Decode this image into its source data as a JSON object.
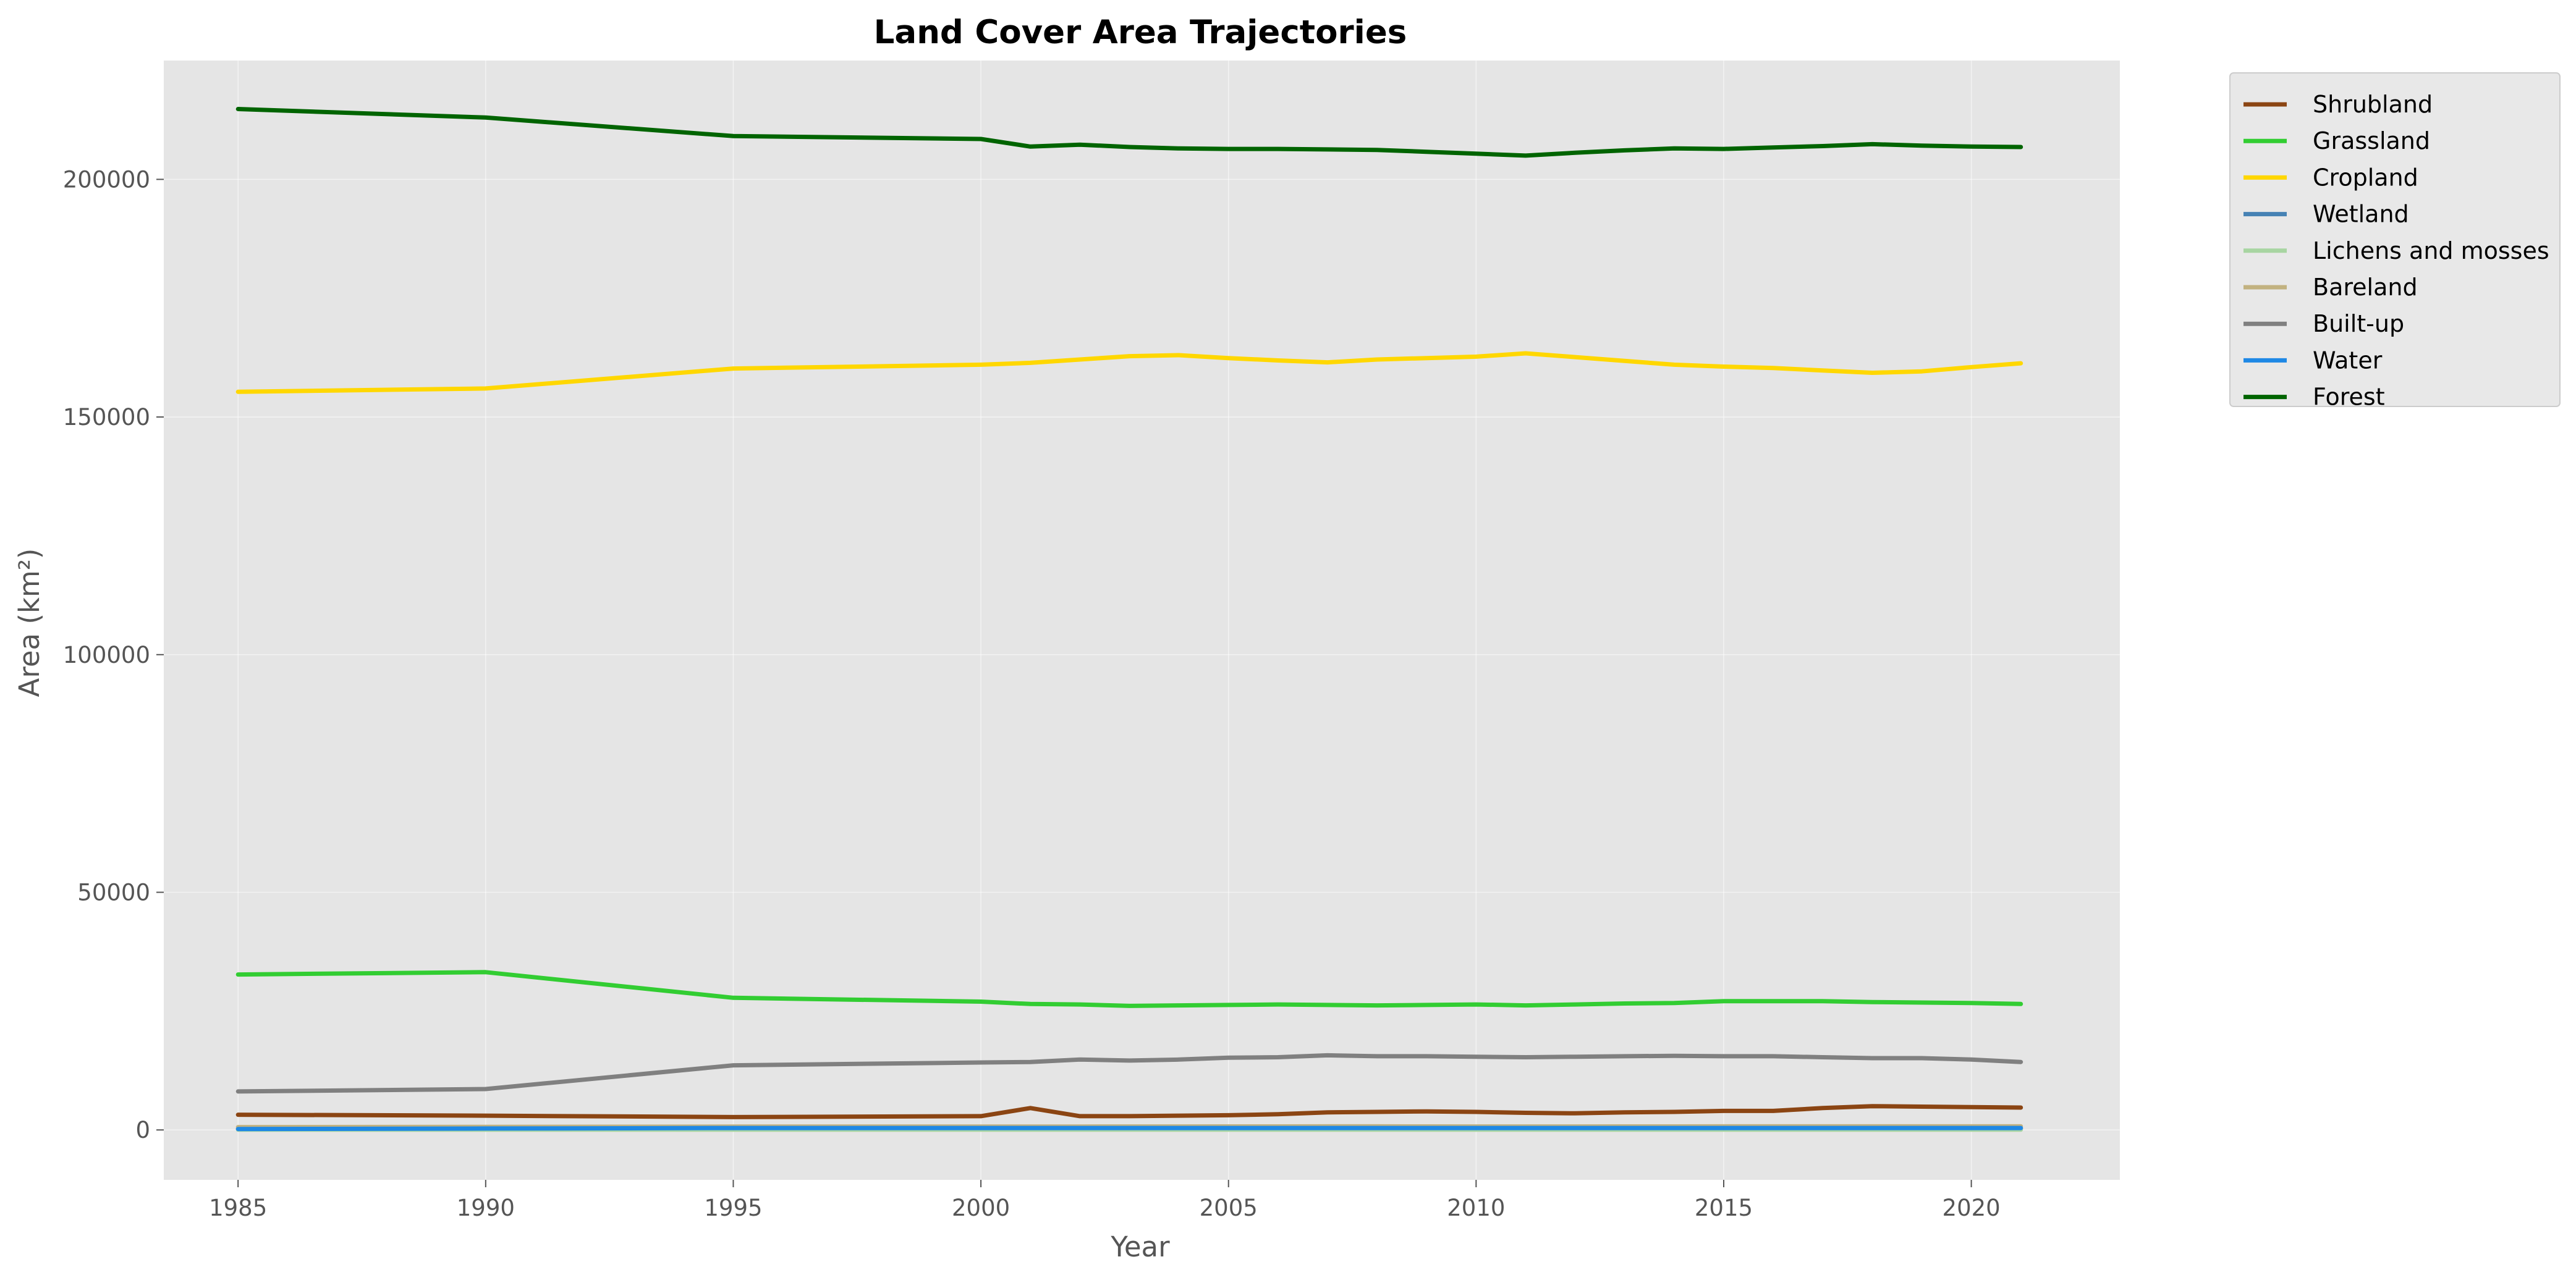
{
  "chart_data": {
    "type": "line",
    "title": "Land Cover Area Trajectories",
    "xlabel": "Year",
    "ylabel": "Area (km²)",
    "xlim": [
      1983.5,
      2023.0
    ],
    "ylim": [
      -10500,
      225000
    ],
    "xticks": [
      1985,
      1990,
      1995,
      2000,
      2005,
      2010,
      2015,
      2020
    ],
    "yticks": [
      0,
      50000,
      100000,
      150000,
      200000
    ],
    "grid": true,
    "legend_position": "outside-top-right",
    "x": [
      1985,
      1990,
      1995,
      2000,
      2001,
      2002,
      2003,
      2004,
      2005,
      2006,
      2007,
      2008,
      2009,
      2010,
      2011,
      2012,
      2013,
      2014,
      2015,
      2016,
      2017,
      2018,
      2019,
      2020,
      2021
    ],
    "series": [
      {
        "name": "Shrubland",
        "color": "#8B4513",
        "values": [
          3200,
          3000,
          2700,
          2900,
          4600,
          2900,
          2900,
          3000,
          3100,
          3300,
          3700,
          3800,
          3900,
          3800,
          3600,
          3500,
          3700,
          3800,
          4000,
          4000,
          4600,
          5000,
          4900,
          4800,
          4700
        ]
      },
      {
        "name": "Grassland",
        "color": "#32CD32",
        "values": [
          32700,
          33200,
          27800,
          27000,
          26500,
          26400,
          26100,
          26200,
          26300,
          26400,
          26300,
          26200,
          26300,
          26400,
          26200,
          26400,
          26600,
          26700,
          27100,
          27100,
          27100,
          26900,
          26800,
          26700,
          26500
        ]
      },
      {
        "name": "Cropland",
        "color": "#FFD700",
        "values": [
          155300,
          156000,
          160200,
          161000,
          161400,
          162100,
          162800,
          163000,
          162400,
          161900,
          161500,
          162100,
          162400,
          162700,
          163400,
          162600,
          161800,
          161000,
          160600,
          160300,
          159800,
          159300,
          159600,
          160500,
          161300
        ]
      },
      {
        "name": "Wetland",
        "color": "#4682B4",
        "values": [
          200,
          210,
          220,
          230,
          230,
          230,
          240,
          240,
          240,
          250,
          250,
          250,
          250,
          260,
          260,
          260,
          260,
          270,
          270,
          270,
          270,
          280,
          280,
          280,
          280
        ]
      },
      {
        "name": "Lichens and mosses",
        "color": "#A8D5A2",
        "values": [
          50,
          50,
          50,
          50,
          50,
          50,
          50,
          50,
          50,
          50,
          50,
          50,
          50,
          50,
          50,
          50,
          50,
          50,
          50,
          50,
          50,
          50,
          50,
          50,
          50
        ]
      },
      {
        "name": "Bareland",
        "color": "#C2B280",
        "values": [
          600,
          650,
          700,
          700,
          720,
          720,
          730,
          730,
          740,
          740,
          750,
          750,
          740,
          730,
          730,
          730,
          740,
          740,
          750,
          750,
          750,
          760,
          760,
          760,
          760
        ]
      },
      {
        "name": "Built-up",
        "color": "#808080",
        "values": [
          8100,
          8600,
          13600,
          14200,
          14300,
          14800,
          14600,
          14800,
          15200,
          15300,
          15700,
          15500,
          15500,
          15400,
          15300,
          15400,
          15500,
          15600,
          15500,
          15500,
          15300,
          15100,
          15100,
          14800,
          14300
        ]
      },
      {
        "name": "Water",
        "color": "#1E88E5",
        "values": [
          200,
          300,
          400,
          400,
          400,
          400,
          400,
          400,
          400,
          400,
          400,
          400,
          400,
          400,
          400,
          400,
          400,
          400,
          400,
          400,
          400,
          400,
          400,
          400,
          400
        ]
      },
      {
        "name": "Forest",
        "color": "#006400",
        "values": [
          214800,
          213000,
          209100,
          208500,
          206900,
          207300,
          206800,
          206500,
          206400,
          206400,
          206300,
          206200,
          205800,
          205400,
          205000,
          205600,
          206100,
          206500,
          206400,
          206700,
          207000,
          207400,
          207100,
          206900,
          206800
        ]
      }
    ]
  }
}
